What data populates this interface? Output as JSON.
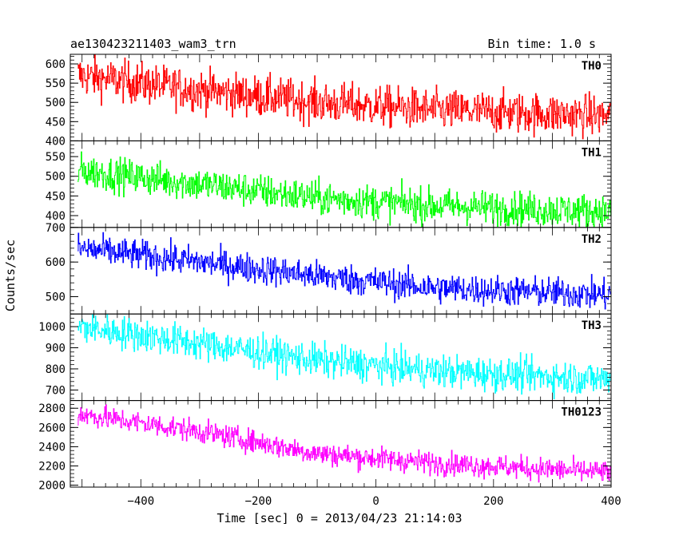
{
  "header": {
    "title": "ae130423211403_wam3_trn",
    "bin_time": "Bin time: 1.0 s"
  },
  "chart_data": {
    "type": "line",
    "xlabel": "Time [sec] 0 = 2013/04/23 21:14:03",
    "ylabel": "Counts/sec",
    "xlim": [
      -520,
      400
    ],
    "x_ticks": [
      -400,
      -200,
      0,
      200,
      400
    ],
    "x_tick_labels": [
      "−400",
      "−200",
      "0",
      "200",
      "400"
    ],
    "x_start": -507,
    "x_end": 400,
    "bin_time_s": 1.0,
    "panels": [
      {
        "name": "TH0",
        "color": "#ff0000",
        "ylim": [
          400,
          625
        ],
        "y_ticks": [
          400,
          450,
          500,
          550,
          600
        ],
        "trend": [
          [
            -507,
            570
          ],
          [
            -350,
            540
          ],
          [
            -100,
            500
          ],
          [
            100,
            480
          ],
          [
            400,
            465
          ]
        ],
        "noise": 27
      },
      {
        "name": "TH1",
        "color": "#00ff00",
        "ylim": [
          370,
          590
        ],
        "y_ticks": [
          400,
          450,
          500,
          550
        ],
        "trend": [
          [
            -507,
            515
          ],
          [
            -300,
            480
          ],
          [
            -100,
            445
          ],
          [
            100,
            425
          ],
          [
            400,
            410
          ]
        ],
        "noise": 22
      },
      {
        "name": "TH2",
        "color": "#0000ff",
        "ylim": [
          450,
          700
        ],
        "y_ticks": [
          500,
          600,
          700
        ],
        "trend": [
          [
            -507,
            640
          ],
          [
            -300,
            600
          ],
          [
            -100,
            560
          ],
          [
            100,
            525
          ],
          [
            400,
            505
          ]
        ],
        "noise": 22
      },
      {
        "name": "TH3",
        "color": "#00ffff",
        "ylim": [
          650,
          1060
        ],
        "y_ticks": [
          700,
          800,
          900,
          1000
        ],
        "trend": [
          [
            -507,
            1000
          ],
          [
            -300,
            920
          ],
          [
            -100,
            840
          ],
          [
            100,
            790
          ],
          [
            400,
            750
          ]
        ],
        "noise": 40
      },
      {
        "name": "TH0123",
        "color": "#ff00ff",
        "ylim": [
          1980,
          2880
        ],
        "y_ticks": [
          2000,
          2200,
          2400,
          2600,
          2800
        ],
        "trend": [
          [
            -507,
            2740
          ],
          [
            -300,
            2560
          ],
          [
            -100,
            2330
          ],
          [
            100,
            2230
          ],
          [
            400,
            2130
          ]
        ],
        "noise": 60
      }
    ]
  }
}
